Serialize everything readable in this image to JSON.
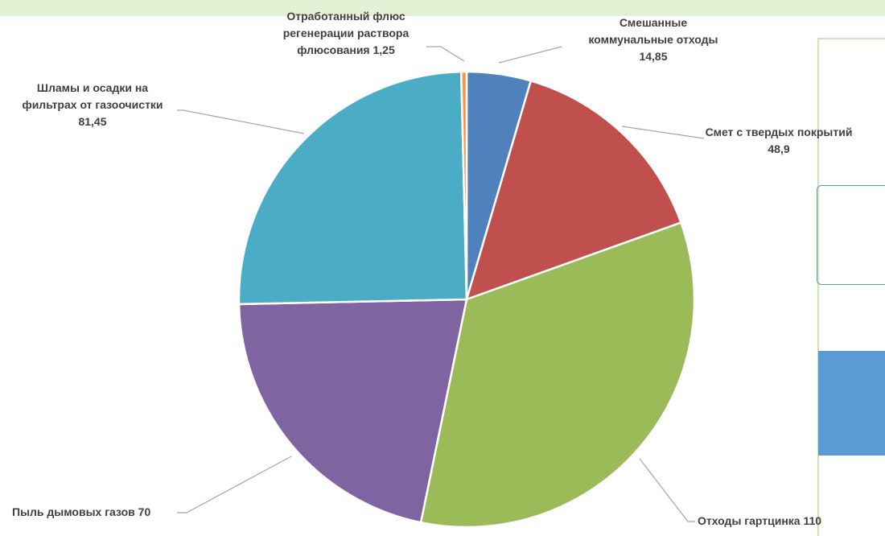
{
  "chart_data": {
    "type": "pie",
    "title": "",
    "slices": [
      {
        "label_lines": [
          "Смешанные",
          "коммунальные отходы",
          "14,85"
        ],
        "value": 14.85,
        "color": "#4f81bd"
      },
      {
        "label_lines": [
          "Смет с твердых покрытий",
          "48,9"
        ],
        "value": 48.9,
        "color": "#c0504d"
      },
      {
        "label_lines": [
          "Отходы гартцинка 110"
        ],
        "value": 110,
        "color": "#9bbb59"
      },
      {
        "label_lines": [
          "Пыль дымовых газов 70"
        ],
        "value": 70,
        "color": "#8064a2"
      },
      {
        "label_lines": [
          "Шламы и осадки на",
          "фильтрах от газоочистки",
          "81,45"
        ],
        "value": 81.45,
        "color": "#4bacc6"
      },
      {
        "label_lines": [
          "Отработанный флюс",
          "регенерации раствора",
          "флюсования 1,25"
        ],
        "value": 1.25,
        "color": "#f79646"
      }
    ]
  }
}
